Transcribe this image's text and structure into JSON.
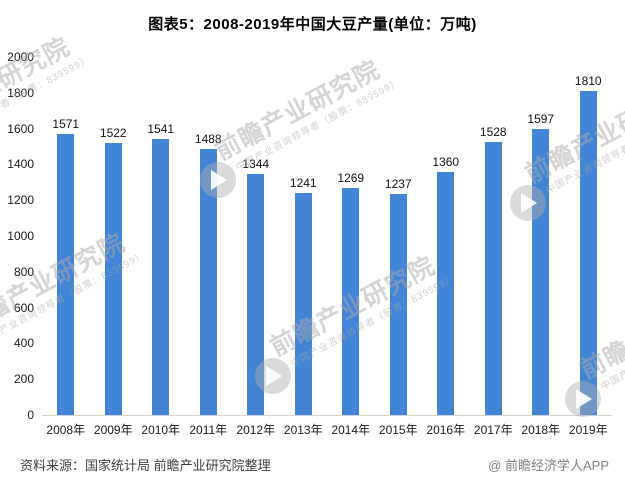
{
  "title": "图表5：2008-2019年中国大豆产量(单位：万吨)",
  "chart_data": {
    "type": "bar",
    "title": "图表5：2008-2019年中国大豆产量(单位：万吨)",
    "unit": "万吨",
    "categories": [
      "2008年",
      "2009年",
      "2010年",
      "2011年",
      "2012年",
      "2013年",
      "2014年",
      "2015年",
      "2016年",
      "2017年",
      "2018年",
      "2019年"
    ],
    "values": [
      1571,
      1522,
      1541,
      1488,
      1344,
      1241,
      1269,
      1237,
      1360,
      1528,
      1597,
      1810
    ],
    "value_labels_shown": true,
    "xlabel": "",
    "ylabel": "",
    "ylim": [
      0,
      2000
    ],
    "y_ticks": [
      0,
      200,
      400,
      600,
      800,
      1000,
      1200,
      1400,
      1600,
      1800,
      2000
    ],
    "grid": false,
    "legend": "none"
  },
  "colors": {
    "bar": "#4285D6",
    "axis_line": "#D3D3D3",
    "tick_text": "#1A1A1A"
  },
  "watermark": {
    "brand": "前瞻产业研究院",
    "tagline": "中国产业咨询领导者（股票：839599）"
  },
  "footer": {
    "source": "资料来源：国家统计局 前瞻产业研究院整理",
    "attribution": "@ 前瞻经济学人APP"
  }
}
